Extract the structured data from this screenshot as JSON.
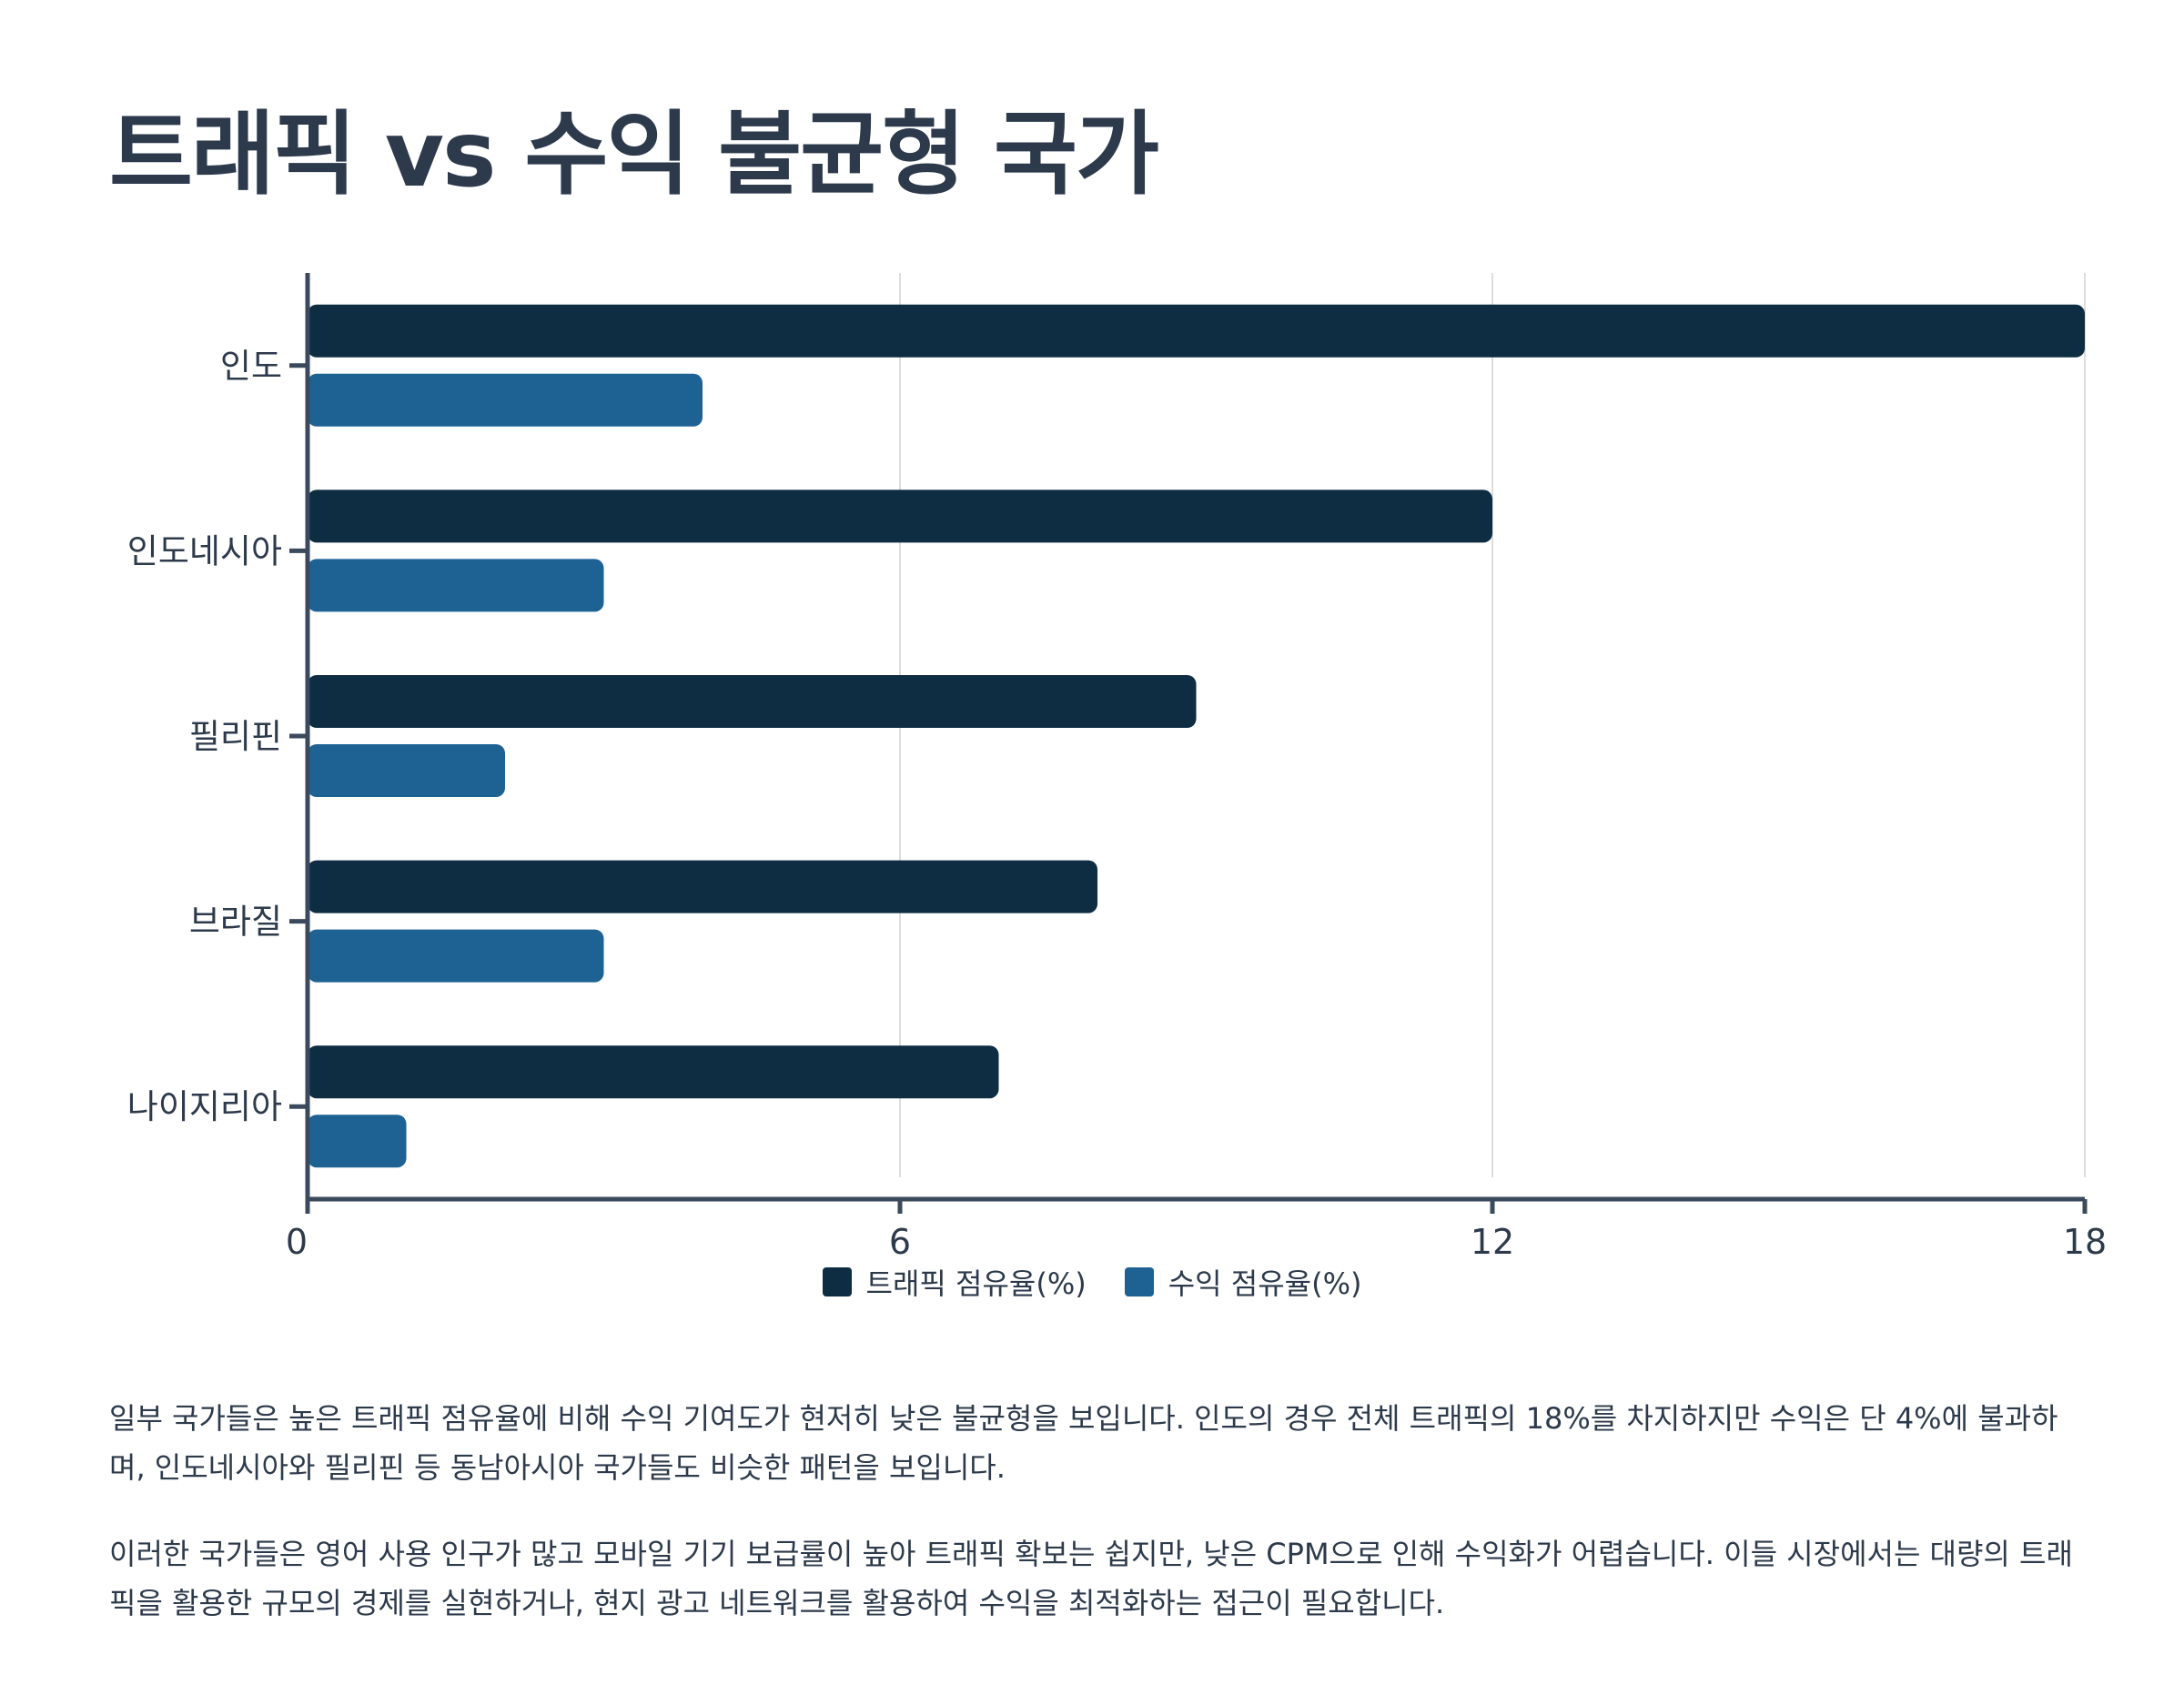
{
  "page": {
    "title": "트래픽 vs 수익 불균형 국가",
    "paragraphs": [
      "일부 국가들은 높은 트래픽 점유율에 비해 수익 기여도가 현저히 낮은 불균형을 보입니다. 인도의 경우 전체 트래픽의 18%를 차지하지만 수익은 단 4%에 불과하며, 인도네시아와 필리핀 등 동남아시아 국가들도 비슷한 패턴을 보입니다.",
      "이러한 국가들은 영어 사용 인구가 많고 모바일 기기 보급률이 높아 트래픽 확보는 쉽지만, 낮은 CPM으로 인해 수익화가 어렵습니다. 이들 시장에서는 대량의 트래픽을 활용한 규모의 경제를 실현하거나, 현지 광고 네트워크를 활용하여 수익을 최적화하는 접근이 필요합니다."
    ]
  },
  "chart_data": {
    "type": "bar",
    "orientation": "horizontal",
    "title": "",
    "xlabel": "",
    "ylabel": "",
    "categories": [
      "인도",
      "인도네시아",
      "필리핀",
      "브라질",
      "나이지리아"
    ],
    "series": [
      {
        "name": "트래픽 점유율(%)",
        "values": [
          18,
          12,
          9,
          8,
          7
        ],
        "color": "#0e2c42"
      },
      {
        "name": "수익 점유율(%)",
        "values": [
          4,
          3,
          2,
          3,
          1
        ],
        "color": "#1d6293"
      }
    ],
    "xlim": [
      0,
      18
    ],
    "xticks": [
      0,
      6,
      12,
      18
    ],
    "grid": true,
    "legend": "bottom-center",
    "axis_color": "#3a4a5c",
    "grid_color": "#dddddd"
  }
}
